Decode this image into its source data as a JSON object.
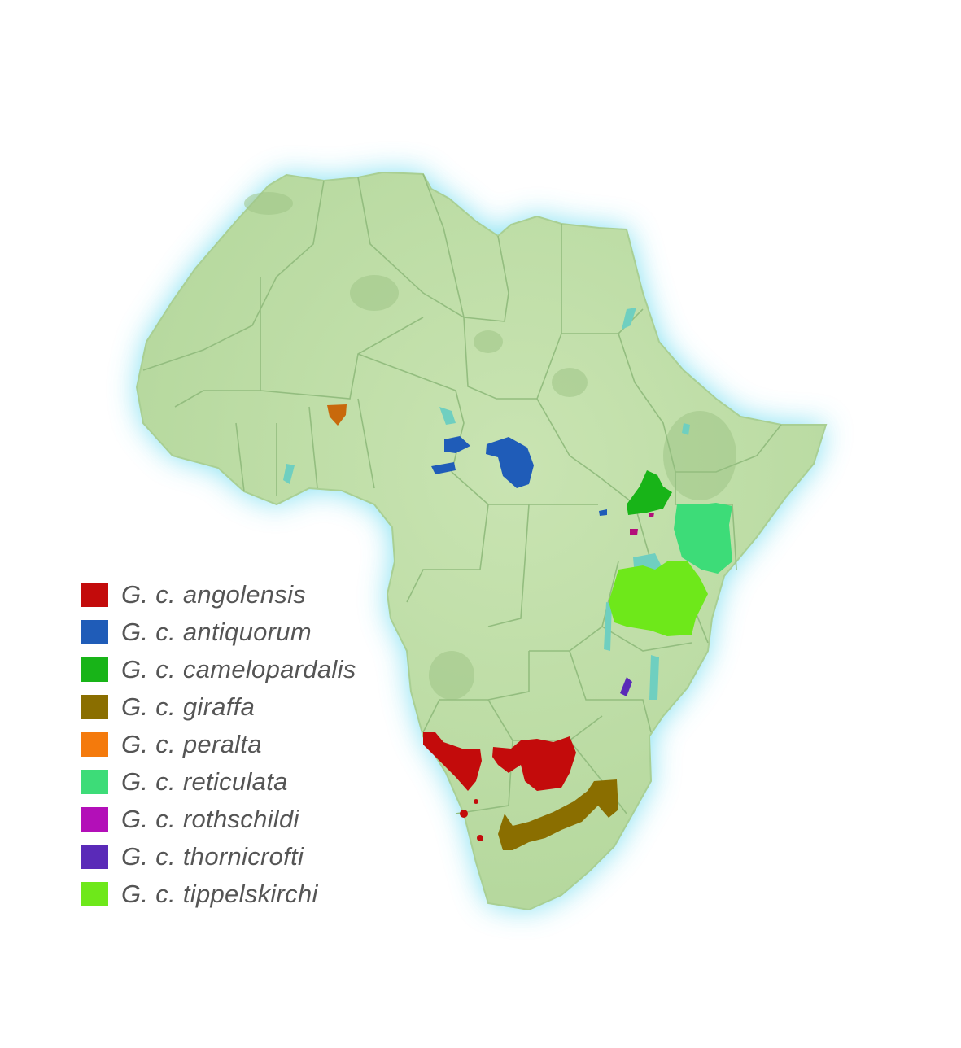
{
  "map": {
    "land_color": "#bcdca4",
    "border_color": "#8fb77c",
    "water_color": "#6fcfc0",
    "glow_color": "#66d9ee"
  },
  "legend": [
    {
      "label": "G. c. angolensis",
      "color": "#c30b0b"
    },
    {
      "label": "G. c. antiquorum",
      "color": "#1f5cb8"
    },
    {
      "label": "G. c. camelopardalis",
      "color": "#18b418"
    },
    {
      "label": "G. c. giraffa",
      "color": "#8a6e00"
    },
    {
      "label": "G. c. peralta",
      "color": "#f47a0c"
    },
    {
      "label": "G. c. reticulata",
      "color": "#3ddc78"
    },
    {
      "label": "G. c. rothschildi",
      "color": "#b30fb8"
    },
    {
      "label": "G. c. thornicrofti",
      "color": "#5a2ab8"
    },
    {
      "label": "G. c. tippelskirchi",
      "color": "#6ee81a"
    }
  ]
}
